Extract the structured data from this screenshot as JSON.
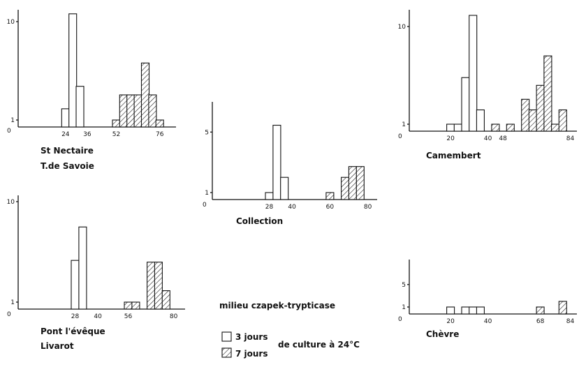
{
  "chart_data": [
    {
      "type": "bar",
      "panel_labels": [
        "St Nectaire",
        "T.de Savoie"
      ],
      "x_ticks": [
        24,
        36,
        52,
        76
      ],
      "y_ticks": [
        1,
        10
      ],
      "y_scale": "log",
      "origin_label": "0",
      "series": [
        {
          "name": "3 jours",
          "x": [
            24,
            28,
            32
          ],
          "values": [
            1.3,
            12,
            2.2
          ]
        },
        {
          "name": "7 jours",
          "x": [
            52,
            56,
            60,
            64,
            68,
            72,
            76
          ],
          "values": [
            1,
            1.8,
            1.8,
            1.8,
            3.8,
            1.8,
            1
          ]
        }
      ]
    },
    {
      "type": "bar",
      "panel_labels": [
        "Collection"
      ],
      "x_ticks": [
        28,
        40,
        60,
        80
      ],
      "y_ticks": [
        1,
        5
      ],
      "y_scale": "log",
      "origin_label": "0",
      "series": [
        {
          "name": "3 jours",
          "x": [
            28,
            32,
            36
          ],
          "values": [
            1,
            6,
            1.5
          ]
        },
        {
          "name": "7 jours",
          "x": [
            60,
            68,
            72,
            76
          ],
          "values": [
            1,
            1.5,
            2,
            2
          ]
        }
      ]
    },
    {
      "type": "bar",
      "panel_labels": [
        "Camembert"
      ],
      "x_ticks": [
        20,
        40,
        48,
        84
      ],
      "y_ticks": [
        1,
        10
      ],
      "y_scale": "log",
      "origin_label": "0",
      "series": [
        {
          "name": "3 jours",
          "x": [
            20,
            24,
            28,
            32,
            36
          ],
          "values": [
            1,
            1,
            3,
            13,
            1.4
          ]
        },
        {
          "name": "7 jours",
          "x": [
            44,
            52,
            60,
            64,
            68,
            72,
            76,
            80
          ],
          "values": [
            1,
            1,
            1.8,
            1.4,
            2.5,
            5,
            1,
            1.4
          ]
        }
      ]
    },
    {
      "type": "bar",
      "panel_labels": [
        "Pont l'évêque",
        "Livarot"
      ],
      "x_ticks": [
        28,
        40,
        56,
        80
      ],
      "y_ticks": [
        1,
        10
      ],
      "y_scale": "log",
      "origin_label": "0",
      "series": [
        {
          "name": "3 jours",
          "x": [
            28,
            32
          ],
          "values": [
            2.6,
            5.6
          ]
        },
        {
          "name": "7 jours",
          "x": [
            56,
            60,
            68,
            72,
            76
          ],
          "values": [
            1,
            1,
            2.5,
            2.5,
            1.3
          ]
        }
      ]
    },
    {
      "type": "bar",
      "panel_labels": [
        "Chèvre"
      ],
      "x_ticks": [
        20,
        40,
        68,
        84
      ],
      "y_ticks": [
        1,
        5
      ],
      "y_scale": "log",
      "origin_label": "0",
      "series": [
        {
          "name": "3 jours",
          "x": [
            20,
            28,
            32,
            36
          ],
          "values": [
            1,
            1,
            1,
            1
          ]
        },
        {
          "name": "7 jours",
          "x": [
            68,
            80
          ],
          "values": [
            1,
            1.5
          ]
        }
      ]
    }
  ],
  "legend": {
    "medium": "milieu czapek-trypticase",
    "open_label": "3 jours",
    "hatched_label": "7 jours",
    "culture_label": "de culture à 24°C"
  }
}
